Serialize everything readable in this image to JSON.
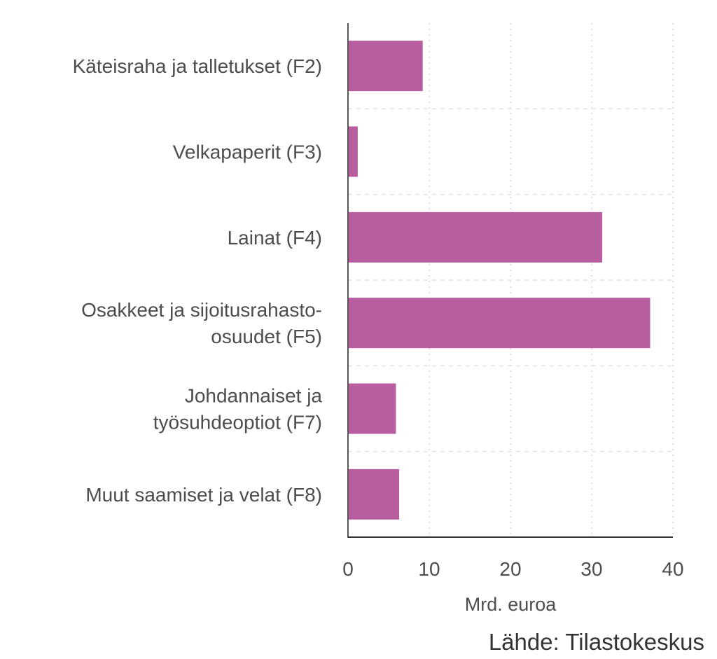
{
  "chart_data": {
    "type": "bar",
    "orientation": "horizontal",
    "categories": [
      [
        "Käteisraha ja talletukset (F2)"
      ],
      [
        "Velkapaperit (F3)"
      ],
      [
        "Lainat (F4)"
      ],
      [
        "Osakkeet ja sijoitusrahasto-",
        "osuudet (F5)"
      ],
      [
        "Johdannaiset ja",
        "työsuhdeoptiot (F7)"
      ],
      [
        "Muut saamiset ja velat (F8)"
      ]
    ],
    "values": [
      9.2,
      1.2,
      31.3,
      37.2,
      5.9,
      6.3
    ],
    "xlabel": "Mrd. euroa",
    "xlim": [
      0,
      40
    ],
    "xticks": [
      "0",
      "10",
      "20",
      "30",
      "40"
    ],
    "grid": true,
    "bar_color": "#b85e9f",
    "source": "Lähde: Tilastokeskus"
  }
}
